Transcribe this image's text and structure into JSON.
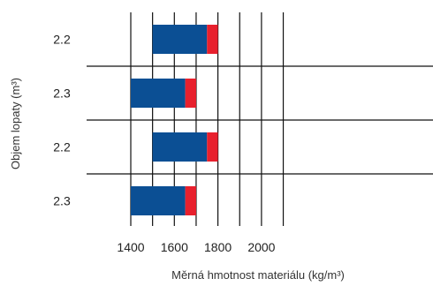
{
  "chart_data": {
    "type": "bar",
    "orientation": "horizontal",
    "stacked": true,
    "categories": [
      "2.2",
      "2.3",
      "2.2",
      "2.3"
    ],
    "series": [
      {
        "color": "#0b4f94",
        "ranges": [
          [
            1500,
            1750
          ],
          [
            1400,
            1650
          ],
          [
            1500,
            1750
          ],
          [
            1400,
            1650
          ]
        ]
      },
      {
        "color": "#e8202d",
        "ranges": [
          [
            1750,
            1800
          ],
          [
            1650,
            1700
          ],
          [
            1750,
            1800
          ],
          [
            1650,
            1700
          ]
        ]
      }
    ],
    "xlabel": "Měrná hmotnost materiálu (kg/m³)",
    "ylabel": "Objem lopaty (m³)",
    "xlim": [
      1300,
      2100
    ],
    "xticks": [
      1400,
      1600,
      1800,
      2000
    ],
    "tick_labels": [
      "1400",
      "1600",
      "1800",
      "2000"
    ],
    "grid": true
  }
}
